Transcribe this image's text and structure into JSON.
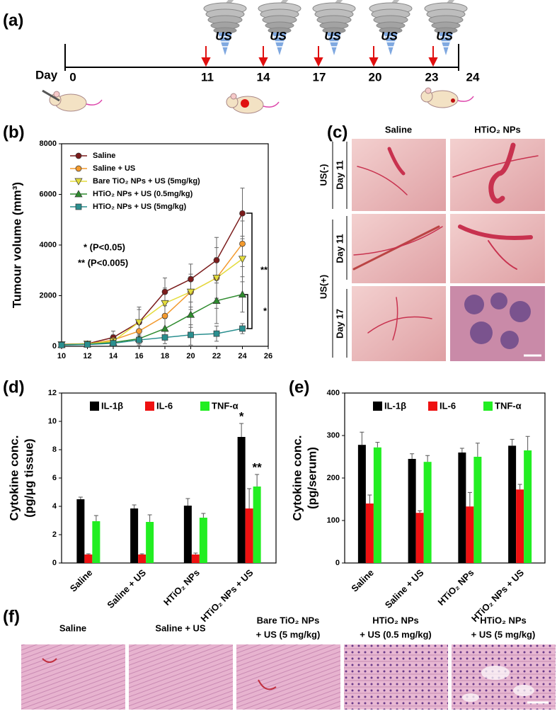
{
  "panel_labels": [
    "(a)",
    "(b)",
    "(c)",
    "(d)",
    "(e)",
    "(f)"
  ],
  "timeline": {
    "axis_label": "Day",
    "days": [
      0,
      11,
      14,
      17,
      20,
      23,
      24
    ],
    "treatment_label": "US"
  },
  "chart_data": [
    {
      "type": "line",
      "ylabel": "Tumour volume (mm³)",
      "xlim": [
        10,
        26
      ],
      "xticks": [
        10,
        12,
        14,
        16,
        18,
        20,
        22,
        24,
        26
      ],
      "ylim": [
        0,
        8000
      ],
      "yticks": [
        0,
        2000,
        4000,
        6000,
        8000
      ],
      "x": [
        10,
        12,
        14,
        16,
        18,
        20,
        22,
        24
      ],
      "series": [
        {
          "name": "Saline",
          "color": "#7b1c1c",
          "marker": "circle",
          "values": [
            80,
            100,
            350,
            950,
            2150,
            2650,
            3400,
            5250
          ],
          "errors": [
            80,
            80,
            250,
            600,
            550,
            600,
            900,
            1000
          ]
        },
        {
          "name": "Saline + US",
          "color": "#f39a2e",
          "marker": "circle",
          "values": [
            60,
            90,
            250,
            600,
            1200,
            2150,
            2700,
            4050
          ],
          "errors": [
            60,
            70,
            200,
            400,
            500,
            600,
            800,
            900
          ]
        },
        {
          "name": "Bare TiO₂ NPs + US (5mg/kg)",
          "color": "#e3dc3c",
          "marker": "triangle-down",
          "values": [
            70,
            100,
            200,
            950,
            1700,
            2150,
            2700,
            3450
          ],
          "errors": [
            60,
            80,
            150,
            500,
            600,
            700,
            1200,
            900
          ]
        },
        {
          "name": "HTiO₂ NPs + US (0.5mg/kg)",
          "color": "#2e8b2e",
          "marker": "triangle-up",
          "values": [
            60,
            80,
            150,
            300,
            700,
            1250,
            1800,
            2050
          ],
          "errors": [
            50,
            60,
            120,
            250,
            400,
            500,
            900,
            700
          ]
        },
        {
          "name": "HTiO₂ NPs + US (5mg/kg)",
          "color": "#2a8f8f",
          "marker": "square",
          "values": [
            50,
            70,
            120,
            250,
            350,
            450,
            500,
            700
          ],
          "errors": [
            40,
            50,
            100,
            150,
            250,
            400,
            300,
            200
          ]
        }
      ],
      "annotations": [
        "* (P<0.05)",
        "** (P<0.005)",
        "**",
        "*"
      ]
    },
    {
      "type": "bar",
      "ylabel": [
        "Cytokine conc.",
        "(pg/μg tissue)"
      ],
      "ylim": [
        0,
        12
      ],
      "yticks": [
        0,
        2,
        4,
        6,
        8,
        10,
        12
      ],
      "categories": [
        "Saline",
        "Saline + US",
        "HTiO₂ NPs",
        "HTiO₂ NPs + US"
      ],
      "series": [
        {
          "name": "IL-1β",
          "color": "#000000",
          "values": [
            4.5,
            3.85,
            4.05,
            8.9
          ],
          "errors": [
            0.15,
            0.25,
            0.5,
            0.95
          ]
        },
        {
          "name": "IL-6",
          "color": "#ee1111",
          "values": [
            0.6,
            0.6,
            0.6,
            3.85
          ],
          "errors": [
            0.05,
            0.05,
            0.1,
            1.4
          ]
        },
        {
          "name": "TNF-α",
          "color": "#22ee22",
          "values": [
            2.95,
            2.9,
            3.2,
            5.4
          ],
          "errors": [
            0.4,
            0.5,
            0.3,
            0.85
          ]
        }
      ],
      "annotations": [
        "*",
        "**"
      ]
    },
    {
      "type": "bar",
      "ylabel": [
        "Cytokine conc.",
        "(pg/serum)"
      ],
      "ylim": [
        0,
        400
      ],
      "yticks": [
        0,
        100,
        200,
        300,
        400
      ],
      "categories": [
        "Saline",
        "Saline + US",
        "HTiO₂ NPs",
        "HTiO₂ NPs + US"
      ],
      "series": [
        {
          "name": "IL-1β",
          "color": "#000000",
          "values": [
            278,
            245,
            260,
            276
          ],
          "errors": [
            30,
            12,
            10,
            15
          ]
        },
        {
          "name": "IL-6",
          "color": "#ee1111",
          "values": [
            140,
            118,
            133,
            173
          ],
          "errors": [
            20,
            5,
            33,
            12
          ]
        },
        {
          "name": "TNF-α",
          "color": "#22ee22",
          "values": [
            272,
            238,
            250,
            265
          ],
          "errors": [
            12,
            15,
            32,
            33
          ]
        }
      ]
    }
  ],
  "photos": {
    "columns": [
      "Saline",
      "HTiO₂ NPs"
    ],
    "groups": [
      "US(-)",
      "US(+)"
    ],
    "rows": [
      "Day 11",
      "Day 11",
      "Day 17"
    ]
  },
  "histology": {
    "titles": [
      [
        "Saline"
      ],
      [
        "Saline + US"
      ],
      [
        "Bare TiO₂ NPs",
        "+ US (5 mg/kg)"
      ],
      [
        "HTiO₂ NPs",
        "+ US (0.5 mg/kg)"
      ],
      [
        "HTiO₂ NPs",
        "+ US (5 mg/kg)"
      ]
    ]
  }
}
